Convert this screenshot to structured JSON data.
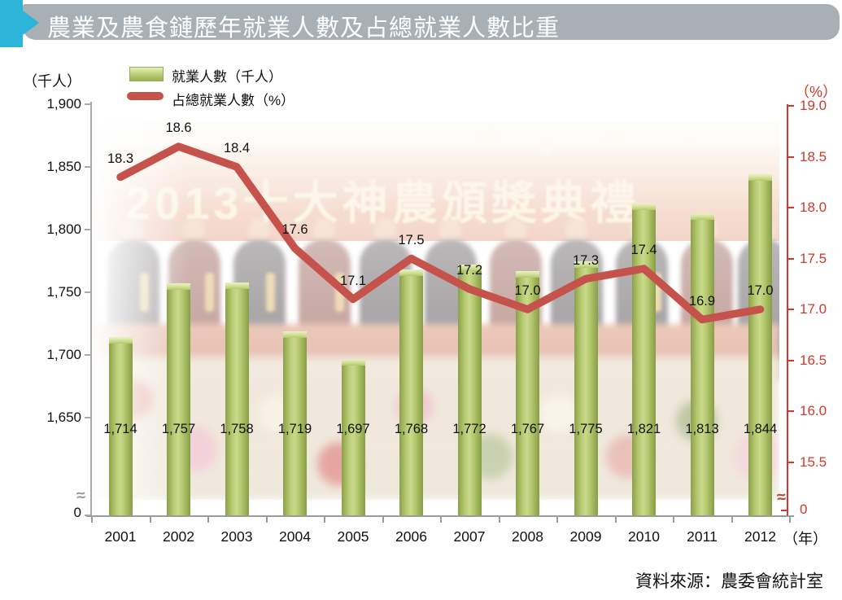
{
  "header": {
    "title": "農業及農食鏈歷年就業人數及占總就業人數比重"
  },
  "legend": {
    "bar_label": "就業人數（千人）",
    "line_label": "占總就業人數（%）"
  },
  "left_axis_unit": "（千人）",
  "right_axis_unit": "（%）",
  "x_axis_unit": "（年）",
  "watermark_text": "2013十大神農頒獎典禮",
  "source": "資料來源：農委會統計室",
  "colors": {
    "header_bar": "#a8afb5",
    "header_accent": "#2cb4d9",
    "bar_green": "#aec266",
    "line_red": "#c5534b",
    "right_axis_red": "#d0382b"
  },
  "chart_data": {
    "type": "bar",
    "subtype": "combo-bar-line",
    "title": "農業及農食鏈歷年就業人數及占總就業人數比重",
    "categories": [
      "2001",
      "2002",
      "2003",
      "2004",
      "2005",
      "2006",
      "2007",
      "2008",
      "2009",
      "2010",
      "2011",
      "2012"
    ],
    "series": [
      {
        "name": "就業人數（千人）",
        "type": "bar",
        "axis": "left",
        "values": [
          1714,
          1757,
          1758,
          1719,
          1697,
          1768,
          1772,
          1767,
          1775,
          1821,
          1813,
          1844
        ],
        "labels": [
          "1,714",
          "1,757",
          "1,758",
          "1,719",
          "1,697",
          "1,768",
          "1,772",
          "1,767",
          "1,775",
          "1,821",
          "1,813",
          "1,844"
        ]
      },
      {
        "name": "占總就業人數（%）",
        "type": "line",
        "axis": "right",
        "values": [
          18.3,
          18.6,
          18.4,
          17.6,
          17.1,
          17.5,
          17.2,
          17.0,
          17.3,
          17.4,
          16.9,
          17.0
        ],
        "labels": [
          "18.3",
          "18.6",
          "18.4",
          "17.6",
          "17.1",
          "17.5",
          "17.2",
          "17.0",
          "17.3",
          "17.4",
          "16.9",
          "17.0"
        ]
      }
    ],
    "left_axis": {
      "label": "（千人）",
      "tick_values": [
        1900,
        1850,
        1800,
        1750,
        1700,
        1650
      ],
      "tick_labels": [
        "1,900",
        "1,850",
        "1,800",
        "1,750",
        "1,700",
        "1,650"
      ],
      "zero_label": "0",
      "axis_break": "≈",
      "range_shown": [
        1650,
        1900
      ]
    },
    "right_axis": {
      "label": "（%）",
      "tick_values": [
        19.0,
        18.5,
        18.0,
        17.5,
        17.0,
        16.5,
        16.0,
        15.5
      ],
      "tick_labels": [
        "19.0",
        "18.5",
        "18.0",
        "17.5",
        "17.0",
        "16.5",
        "16.0",
        "15.5"
      ],
      "zero_label": "0",
      "axis_break": "≈",
      "range_shown": [
        15.5,
        19.0
      ]
    },
    "x_axis": {
      "label": "（年）"
    },
    "legend_position": "top-left",
    "grid": false,
    "source": "資料來源：農委會統計室"
  }
}
